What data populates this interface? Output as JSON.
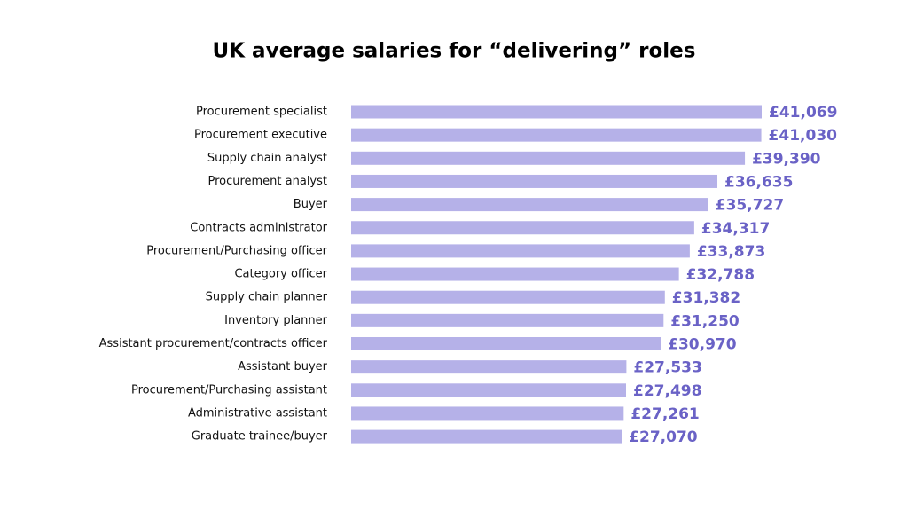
{
  "chart_data": {
    "type": "bar",
    "orientation": "horizontal",
    "title": "UK average salaries for “delivering” roles",
    "categories": [
      "Procurement specialist",
      "Procurement executive",
      "Supply chain analyst",
      "Procurement analyst",
      "Buyer",
      "Contracts administrator",
      "Procurement/Purchasing officer",
      "Category officer",
      "Supply chain planner",
      "Inventory planner",
      "Assistant procurement/contracts officer",
      "Assistant buyer",
      "Procurement/Purchasing assistant",
      "Administrative assistant",
      "Graduate trainee/buyer"
    ],
    "values": [
      41069,
      41030,
      39390,
      36635,
      35727,
      34317,
      33873,
      32788,
      31382,
      31250,
      30970,
      27533,
      27498,
      27261,
      27070
    ],
    "value_labels": [
      "£41,069",
      "£41,030",
      "£39,390",
      "£36,635",
      "£35,727",
      "£34,317",
      "£33,873",
      "£32,788",
      "£31,382",
      "£31,250",
      "£30,970",
      "£27,533",
      "£27,498",
      "£27,261",
      "£27,070"
    ],
    "color": "#b5b1e8",
    "label_color": "#6a62c6"
  }
}
